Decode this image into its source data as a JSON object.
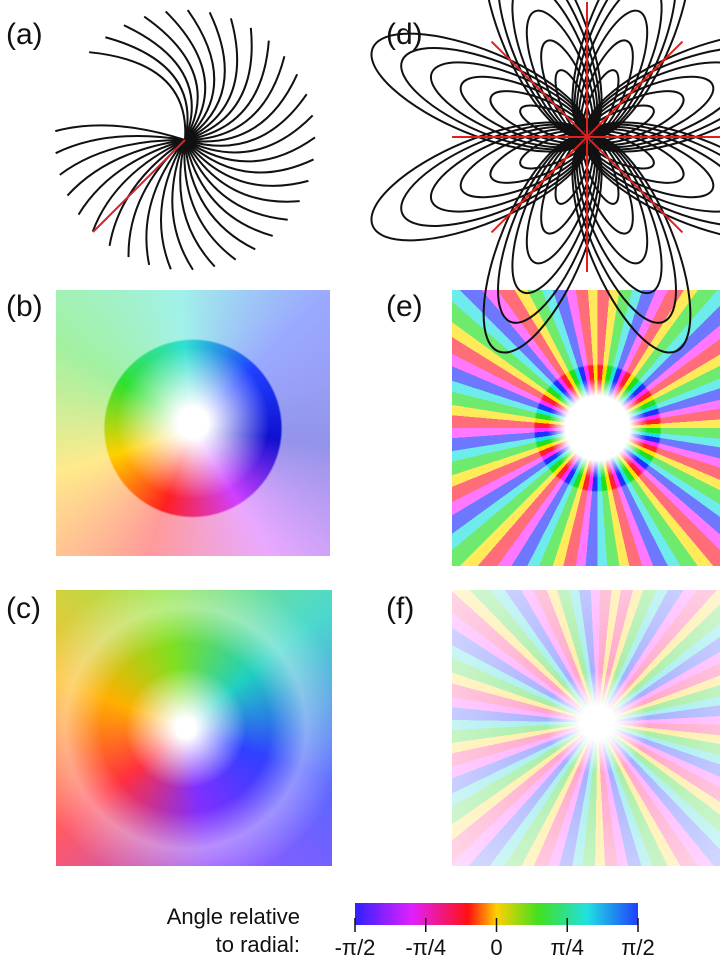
{
  "panels": [
    {
      "label": "(a)"
    },
    {
      "label": "(b)"
    },
    {
      "label": "(c)"
    },
    {
      "label": "(d)"
    },
    {
      "label": "(e)"
    },
    {
      "label": "(f)"
    }
  ],
  "colorbar": {
    "label_lines": [
      "Angle relative",
      "to radial:"
    ],
    "lim": [
      -1.5708,
      1.5708
    ],
    "ticks": [
      {
        "value": -1.5708,
        "label": "-π/2"
      },
      {
        "value": -0.7854,
        "label": "-π/4"
      },
      0,
      {
        "value": 0.7854,
        "label": "π/4"
      },
      {
        "value": 1.5708,
        "label": "π/2"
      }
    ]
  }
}
